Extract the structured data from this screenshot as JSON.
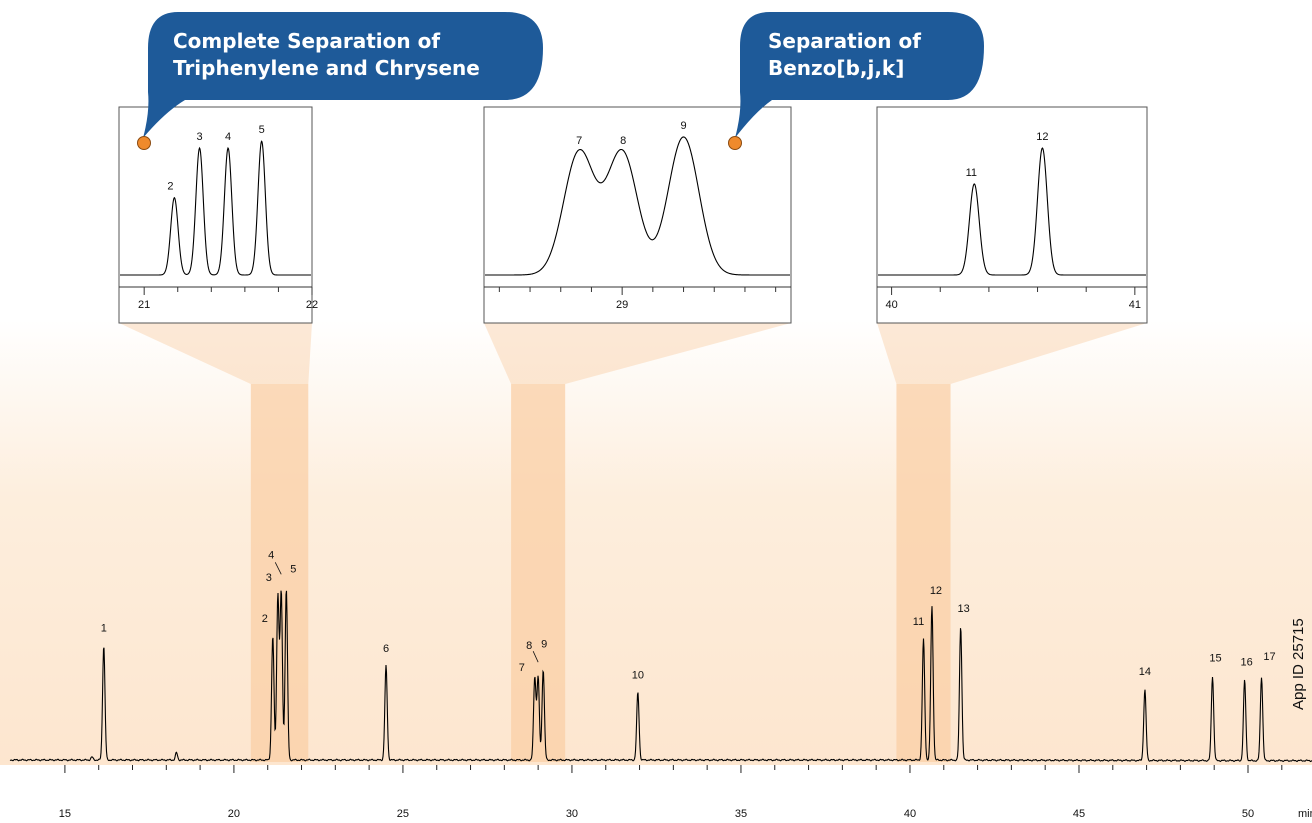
{
  "callouts": [
    {
      "lines": [
        "Complete Separation of",
        "Triphenylene and Chrysene"
      ]
    },
    {
      "lines": [
        "Separation of",
        "Benzo[b,j,k]"
      ]
    }
  ],
  "watermark": "App ID 25715",
  "colors": {
    "callout_fill": "#1e5a99",
    "callout_dot": "#ef8a2c",
    "highlight_band": "#f9cfa6",
    "background_fade": "#fde6cf",
    "trace": "#000000"
  },
  "chart_data": [
    {
      "type": "line",
      "title": "",
      "xlabel": "min",
      "ylabel": "",
      "xlim": [
        13.8,
        52
      ],
      "xticks": [
        15,
        20,
        25,
        30,
        35,
        40,
        45,
        50
      ],
      "xtick_labels": [
        "15",
        "20",
        "25",
        "30",
        "35",
        "40",
        "45",
        "50"
      ],
      "grid": false,
      "peaks": [
        {
          "label": "1",
          "x": 16.15,
          "height": 0.694
        },
        {
          "label": "2",
          "x": 21.15,
          "height": 0.751
        },
        {
          "label": "3",
          "x": 21.3,
          "height": 1.0
        },
        {
          "label": "4",
          "x": 21.4,
          "height": 1.016
        },
        {
          "label": "5",
          "x": 21.55,
          "height": 1.039
        },
        {
          "label": "6",
          "x": 24.5,
          "height": 0.571
        },
        {
          "label": "7",
          "x": 28.9,
          "height": 0.502
        },
        {
          "label": "8",
          "x": 29.0,
          "height": 0.502
        },
        {
          "label": "9",
          "x": 29.15,
          "height": 0.549
        },
        {
          "label": "10",
          "x": 31.95,
          "height": 0.41
        },
        {
          "label": "11",
          "x": 40.4,
          "height": 0.733
        },
        {
          "label": "12",
          "x": 40.65,
          "height": 0.932
        },
        {
          "label": "13",
          "x": 41.5,
          "height": 0.811
        },
        {
          "label": "14",
          "x": 46.95,
          "height": 0.429
        },
        {
          "label": "15",
          "x": 48.95,
          "height": 0.511
        },
        {
          "label": "16",
          "x": 49.9,
          "height": 0.489
        },
        {
          "label": "17",
          "x": 50.4,
          "height": 0.508
        }
      ],
      "highlight_ranges": [
        [
          20.5,
          22.2
        ],
        [
          28.2,
          29.8
        ],
        [
          39.6,
          41.2
        ]
      ]
    },
    {
      "type": "line",
      "title": "",
      "xlim": [
        20.85,
        22.0
      ],
      "xtick_labels": [
        "21",
        "22"
      ],
      "peaks": [
        {
          "label": "2",
          "x": 21.18,
          "height": 0.56
        },
        {
          "label": "3",
          "x": 21.33,
          "height": 0.92
        },
        {
          "label": "4",
          "x": 21.5,
          "height": 0.92
        },
        {
          "label": "5",
          "x": 21.7,
          "height": 0.97
        }
      ]
    },
    {
      "type": "line",
      "title": "",
      "xlim": [
        28.55,
        29.55
      ],
      "xtick_labels": [
        "29"
      ],
      "peaks": [
        {
          "label": "7",
          "x": 28.86,
          "height": 0.89
        },
        {
          "label": "8",
          "x": 29.0,
          "height": 0.89
        },
        {
          "label": "9",
          "x": 29.2,
          "height": 1.0
        }
      ]
    },
    {
      "type": "line",
      "title": "",
      "xlim": [
        39.94,
        41.05
      ],
      "xtick_labels": [
        "40",
        "41"
      ],
      "peaks": [
        {
          "label": "11",
          "x": 40.34,
          "height": 0.66
        },
        {
          "label": "12",
          "x": 40.62,
          "height": 0.92
        }
      ]
    }
  ]
}
